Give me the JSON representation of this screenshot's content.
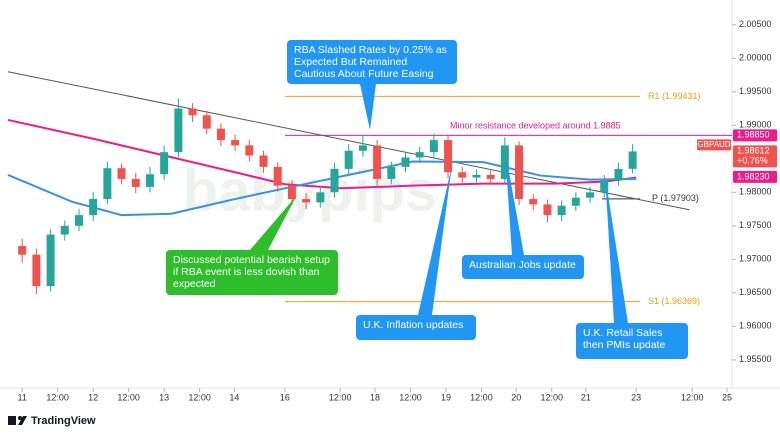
{
  "chart_data": {
    "type": "candlestick",
    "watermark": "babypips",
    "xlim": [
      -0.2,
      10.0
    ],
    "xticks": [
      {
        "value": 0,
        "label": "11"
      },
      {
        "value": 0.5,
        "label": "12:00"
      },
      {
        "value": 1,
        "label": "12"
      },
      {
        "value": 1.5,
        "label": "12:00"
      },
      {
        "value": 2,
        "label": "13"
      },
      {
        "value": 2.5,
        "label": "12:00"
      },
      {
        "value": 2.99,
        "label": "14"
      },
      {
        "value": 3.7,
        "label": "16"
      },
      {
        "value": 4.48,
        "label": "12:00"
      },
      {
        "value": 4.97,
        "label": "18"
      },
      {
        "value": 5.47,
        "label": "12:00"
      },
      {
        "value": 5.97,
        "label": "19"
      },
      {
        "value": 6.47,
        "label": "12:00"
      },
      {
        "value": 6.96,
        "label": "20"
      },
      {
        "value": 7.46,
        "label": "12:00"
      },
      {
        "value": 7.94,
        "label": "21"
      },
      {
        "value": 8.65,
        "label": "23"
      },
      {
        "value": 9.44,
        "label": "12:00"
      },
      {
        "value": 9.93,
        "label": "25"
      }
    ],
    "ylim": [
      1.9508,
      2.0087
    ],
    "yticks": [
      {
        "value": 2.005,
        "label": "2.00500"
      },
      {
        "value": 2.0,
        "label": "2.00000"
      },
      {
        "value": 1.995,
        "label": "1.99500"
      },
      {
        "value": 1.99,
        "label": "1.99000"
      },
      {
        "value": 1.98,
        "label": "1.98000"
      },
      {
        "value": 1.975,
        "label": "1.97500"
      },
      {
        "value": 1.97,
        "label": "1.97000"
      },
      {
        "value": 1.965,
        "label": "1.96500"
      },
      {
        "value": 1.96,
        "label": "1.96000"
      },
      {
        "value": 1.955,
        "label": "1.95500"
      }
    ],
    "up_color": "#26a69a",
    "down_color": "#ef5350",
    "candles": {
      "x": [
        0,
        0.2,
        0.4,
        0.6,
        0.8,
        1,
        1.2,
        1.4,
        1.6,
        1.8,
        2,
        2.2,
        2.4,
        2.6,
        2.8,
        3,
        3.2,
        3.4,
        3.6,
        3.8,
        4,
        4.2,
        4.4,
        4.6,
        4.8,
        5,
        5.2,
        5.4,
        5.6,
        5.8,
        6,
        6.2,
        6.4,
        6.6,
        6.8,
        7,
        7.2,
        7.4,
        7.6,
        7.8,
        8,
        8.2,
        8.4,
        8.6
      ],
      "open": [
        1.972,
        1.9707,
        1.966,
        1.9737,
        1.975,
        1.9766,
        1.979,
        1.9836,
        1.982,
        1.9808,
        1.9827,
        1.986,
        1.9925,
        1.9915,
        1.9895,
        1.9878,
        1.987,
        1.9855,
        1.9838,
        1.981,
        1.979,
        1.9785,
        1.98,
        1.9835,
        1.9862,
        1.987,
        1.982,
        1.9838,
        1.9852,
        1.986,
        1.9878,
        1.983,
        1.9822,
        1.9826,
        1.982,
        1.987,
        1.979,
        1.9782,
        1.9766,
        1.978,
        1.9792,
        1.98,
        1.9818,
        1.9835
      ],
      "high": [
        1.9731,
        1.9716,
        1.9745,
        1.9758,
        1.9775,
        1.9801,
        1.9846,
        1.9843,
        1.9829,
        1.9838,
        1.987,
        1.994,
        1.9933,
        1.9922,
        1.9903,
        1.9886,
        1.9878,
        1.9862,
        1.9845,
        1.9818,
        1.9799,
        1.9808,
        1.9844,
        1.9872,
        1.9885,
        1.9878,
        1.9846,
        1.9861,
        1.9868,
        1.9888,
        1.9884,
        1.9838,
        1.9834,
        1.9833,
        1.9882,
        1.9876,
        1.9798,
        1.9789,
        1.9788,
        1.98,
        1.9808,
        1.9826,
        1.9844,
        1.9872
      ],
      "low": [
        1.9695,
        1.9648,
        1.9652,
        1.9728,
        1.9742,
        1.9757,
        1.9782,
        1.9812,
        1.9799,
        1.98,
        1.9818,
        1.9852,
        1.9905,
        1.9887,
        1.9869,
        1.9862,
        1.9846,
        1.9829,
        1.9801,
        1.9781,
        1.9775,
        1.9777,
        1.9792,
        1.9826,
        1.9853,
        1.981,
        1.9812,
        1.983,
        1.9844,
        1.9851,
        1.9821,
        1.9814,
        1.9815,
        1.9811,
        1.9812,
        1.9781,
        1.9773,
        1.9755,
        1.9757,
        1.9772,
        1.9784,
        1.9792,
        1.981,
        1.9828
      ],
      "close": [
        1.9707,
        1.966,
        1.9737,
        1.975,
        1.9766,
        1.979,
        1.9836,
        1.982,
        1.9808,
        1.9827,
        1.986,
        1.9925,
        1.9915,
        1.9895,
        1.9878,
        1.987,
        1.9855,
        1.9838,
        1.981,
        1.979,
        1.9785,
        1.98,
        1.9835,
        1.9862,
        1.987,
        1.982,
        1.9838,
        1.9852,
        1.986,
        1.9878,
        1.983,
        1.9822,
        1.9826,
        1.982,
        1.987,
        1.979,
        1.9782,
        1.9766,
        1.978,
        1.9792,
        1.98,
        1.9818,
        1.9835,
        1.9861
      ]
    },
    "series": [
      {
        "color": "#e91e8c",
        "x": [
          -0.2,
          1,
          2,
          3,
          3.7,
          4.5,
          5.5,
          6.5,
          7.5,
          8.2,
          8.65
        ],
        "values": [
          1.9908,
          1.988,
          1.9855,
          1.983,
          1.9812,
          1.9806,
          1.981,
          1.9813,
          1.9813,
          1.9816,
          1.9822
        ]
      },
      {
        "color": "#3d8fe0",
        "x": [
          -0.2,
          0.7,
          1.4,
          2.1,
          3,
          3.7,
          4.6,
          5.5,
          6.5,
          7.3,
          8,
          8.65
        ],
        "values": [
          1.9826,
          1.9786,
          1.9766,
          1.9768,
          1.979,
          1.9806,
          1.9826,
          1.9846,
          1.9845,
          1.9825,
          1.9819,
          1.982
        ]
      }
    ],
    "trend_line": {
      "color": "#555555",
      "x": [
        -0.2,
        9.4
      ],
      "values": [
        1.998,
        1.9774
      ]
    },
    "levels": [
      {
        "label": "R1 (1.99431)",
        "value": 1.99431,
        "color": "#f39c12"
      },
      {
        "label": "S1 (1.96369)",
        "value": 1.96369,
        "color": "#f39c12"
      },
      {
        "label": "P (1.97903)",
        "value": 1.97903,
        "color": "#333333"
      },
      {
        "label": "Minor resistance developed around 1.9885",
        "value": 1.9885,
        "color": "#e91e8c"
      }
    ],
    "price_tags": [
      {
        "label": "1.98850",
        "value": 1.9885,
        "color": "#e91e8c"
      },
      {
        "label": "1.98230",
        "value": 1.9823,
        "color": "#e91e8c"
      }
    ],
    "last_price": {
      "symbol": "GBPAUD",
      "label": "1.98612",
      "value": 1.98612,
      "change": "+0.76%",
      "color": "#ef5350"
    },
    "annotations": [
      {
        "text": "RBA Slashed Rates by 0.25% as Expected But Remained Cautious About Future Easing",
        "color": "#2196f3"
      },
      {
        "text": "Discussed potential bearish setup if RBA event is less dovish than expected",
        "color": "#2ebd2b"
      },
      {
        "text": "Australian Jobs update",
        "color": "#2196f3"
      },
      {
        "text": "U.K. Inflation updates",
        "color": "#2196f3"
      },
      {
        "text": "U.K. Retail Sales then PMIs update",
        "color": "#2196f3"
      }
    ]
  },
  "footer": {
    "brand": "TradingView"
  }
}
